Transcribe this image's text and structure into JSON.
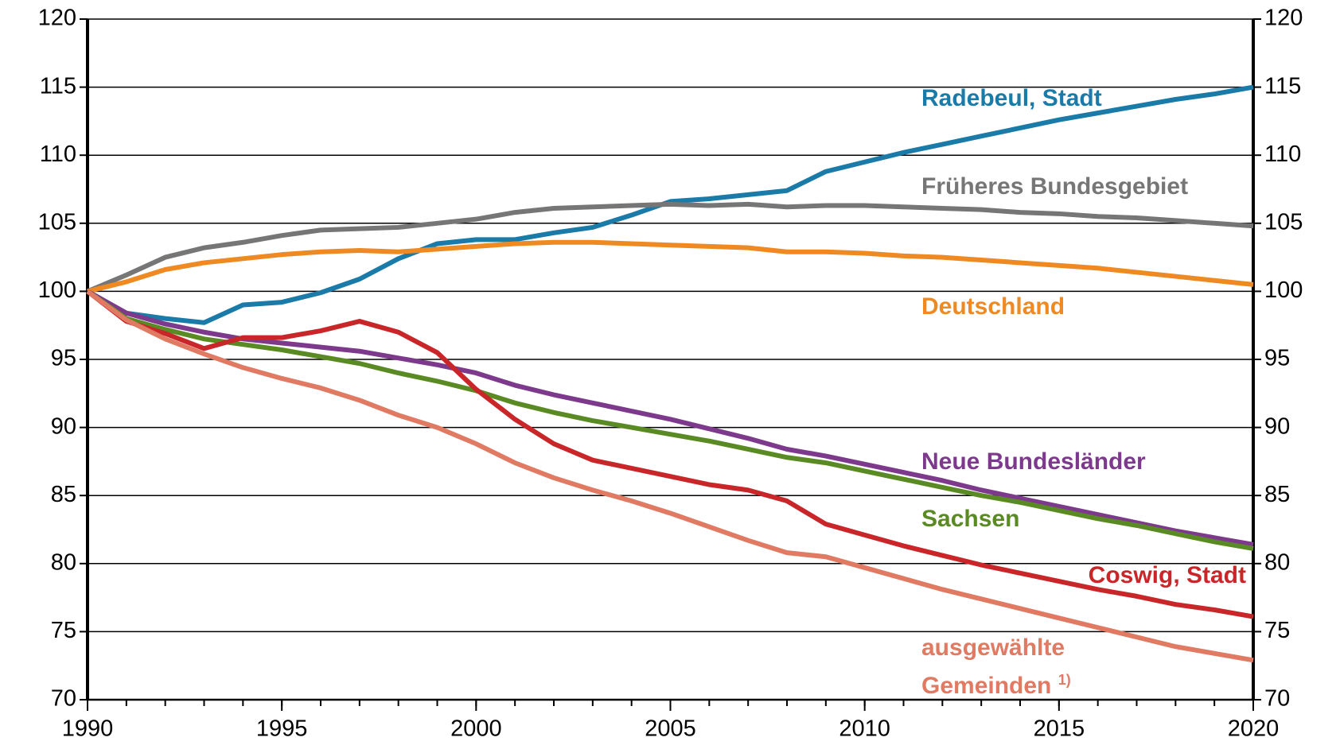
{
  "chart_data": {
    "type": "line",
    "x": [
      1990,
      1991,
      1992,
      1993,
      1994,
      1995,
      1996,
      1997,
      1998,
      1999,
      2000,
      2001,
      2002,
      2003,
      2004,
      2005,
      2006,
      2007,
      2008,
      2009,
      2010,
      2011,
      2012,
      2013,
      2014,
      2015,
      2016,
      2017,
      2018,
      2019,
      2020
    ],
    "xlim": [
      1990,
      2020
    ],
    "xticks": [
      1990,
      1995,
      2000,
      2005,
      2010,
      2015,
      2020
    ],
    "ylim": [
      70,
      120
    ],
    "yticks": [
      70,
      75,
      80,
      85,
      90,
      95,
      100,
      105,
      110,
      115,
      120
    ],
    "y2lim": [
      70,
      120
    ],
    "y2ticks": [
      70,
      75,
      80,
      85,
      90,
      95,
      100,
      105,
      110,
      115,
      120
    ],
    "grid": true,
    "series": [
      {
        "name": "Radebeul, Stadt",
        "color": "#1a7aa8",
        "values": [
          100,
          98.4,
          98.0,
          97.7,
          99.0,
          99.2,
          99.9,
          100.9,
          102.4,
          103.5,
          103.8,
          103.8,
          104.3,
          104.7,
          105.6,
          106.6,
          106.8,
          107.1,
          107.4,
          108.8,
          109.5,
          110.2,
          110.8,
          111.4,
          112.0,
          112.6,
          113.1,
          113.6,
          114.1,
          114.5,
          115.0
        ]
      },
      {
        "name": "Früheres Bundesgebiet",
        "color": "#767676",
        "values": [
          100,
          101.2,
          102.5,
          103.2,
          103.6,
          104.1,
          104.5,
          104.6,
          104.7,
          105.0,
          105.3,
          105.8,
          106.1,
          106.2,
          106.3,
          106.4,
          106.3,
          106.4,
          106.2,
          106.3,
          106.3,
          106.2,
          106.1,
          106.0,
          105.8,
          105.7,
          105.5,
          105.4,
          105.2,
          105.0,
          104.8
        ]
      },
      {
        "name": "Deutschland",
        "color": "#ef8a22",
        "values": [
          100,
          100.7,
          101.6,
          102.1,
          102.4,
          102.7,
          102.9,
          103.0,
          102.9,
          103.1,
          103.3,
          103.5,
          103.6,
          103.6,
          103.5,
          103.4,
          103.3,
          103.2,
          102.9,
          102.9,
          102.8,
          102.6,
          102.5,
          102.3,
          102.1,
          101.9,
          101.7,
          101.4,
          101.1,
          100.8,
          100.5
        ]
      },
      {
        "name": "Neue Bundesländer",
        "color": "#7d3a8c",
        "values": [
          100,
          98.4,
          97.6,
          97.0,
          96.5,
          96.2,
          95.9,
          95.6,
          95.1,
          94.6,
          94.0,
          93.1,
          92.4,
          91.8,
          91.2,
          90.6,
          89.9,
          89.2,
          88.4,
          87.9,
          87.3,
          86.7,
          86.1,
          85.4,
          84.8,
          84.2,
          83.6,
          83.0,
          82.4,
          81.9,
          81.4
        ]
      },
      {
        "name": "Sachsen",
        "color": "#5a8a23",
        "values": [
          100,
          98.0,
          97.2,
          96.5,
          96.1,
          95.7,
          95.2,
          94.7,
          94.0,
          93.4,
          92.7,
          91.8,
          91.1,
          90.5,
          90.0,
          89.5,
          89.0,
          88.4,
          87.8,
          87.4,
          86.8,
          86.2,
          85.6,
          85.0,
          84.5,
          83.9,
          83.3,
          82.8,
          82.2,
          81.6,
          81.1
        ]
      },
      {
        "name": "Coswig, Stadt",
        "color": "#c9262a",
        "values": [
          100,
          97.8,
          96.9,
          95.8,
          96.6,
          96.6,
          97.1,
          97.8,
          97.0,
          95.5,
          92.8,
          90.6,
          88.8,
          87.6,
          87.0,
          86.4,
          85.8,
          85.4,
          84.6,
          82.9,
          82.1,
          81.3,
          80.6,
          79.9,
          79.3,
          78.7,
          78.1,
          77.6,
          77.0,
          76.6,
          76.1
        ]
      },
      {
        "name": "ausgewählte Gemeinden",
        "footnote_mark": "1)",
        "color": "#e07a63",
        "values": [
          100,
          97.9,
          96.5,
          95.4,
          94.4,
          93.6,
          92.9,
          92.0,
          90.9,
          90.0,
          88.8,
          87.4,
          86.3,
          85.4,
          84.6,
          83.7,
          82.7,
          81.7,
          80.8,
          80.5,
          79.7,
          78.9,
          78.1,
          77.4,
          76.7,
          76.0,
          75.3,
          74.6,
          73.9,
          73.4,
          72.9
        ]
      }
    ]
  }
}
